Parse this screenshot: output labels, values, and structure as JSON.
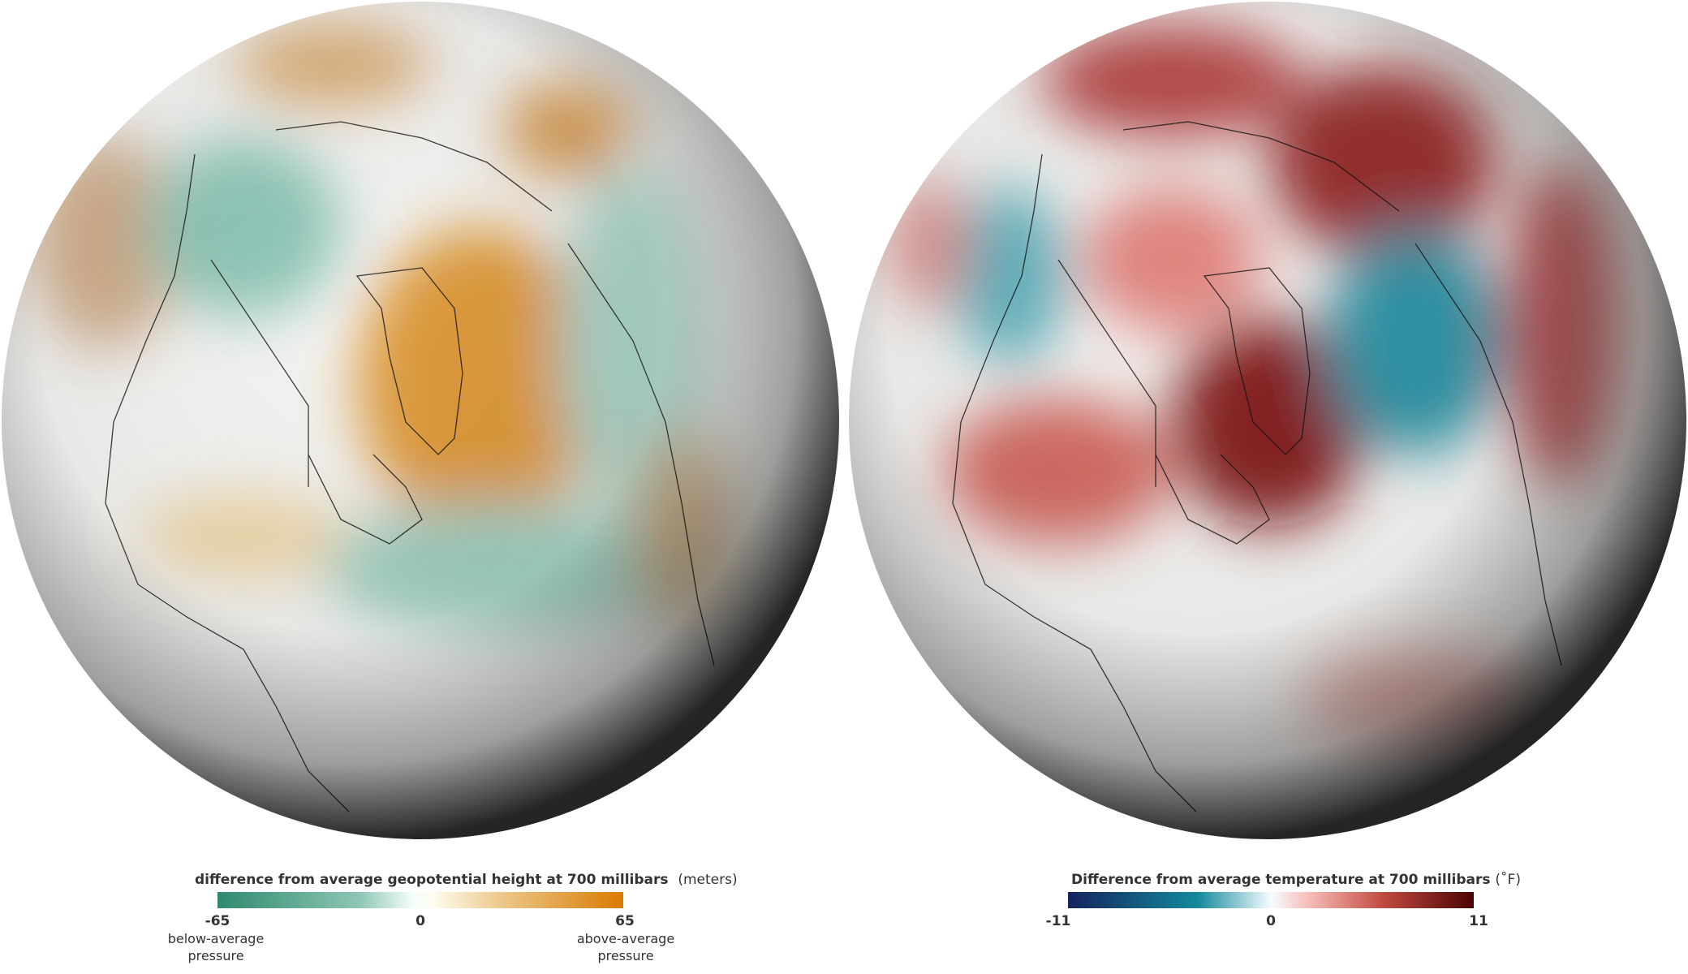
{
  "left_map": {
    "legend": {
      "title": "difference from average geopotential height at 700 millibars",
      "unit": "(meters)",
      "min": "-65",
      "mid": "0",
      "max": "65",
      "min_label": "below-average pressure",
      "max_label": "above-average pressure",
      "colors": [
        "#2e8a6e",
        "#ffffff",
        "#d97a00"
      ]
    }
  },
  "right_map": {
    "legend": {
      "title": "Difference from average temperature at 700 millibars",
      "unit": "(˚F)",
      "min": "-11",
      "mid": "0",
      "max": "11",
      "colors": [
        "#15235e",
        "#138a9c",
        "#ffffff",
        "#c0483e",
        "#4a0404"
      ]
    }
  }
}
